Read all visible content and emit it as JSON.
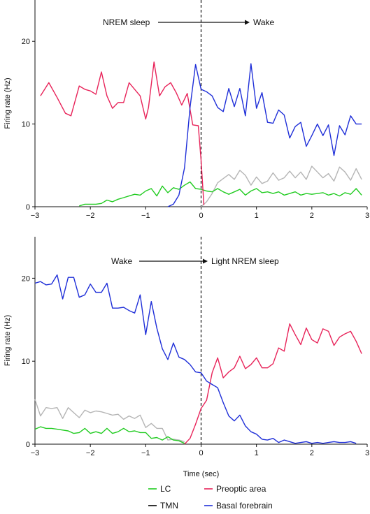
{
  "chart_data": [
    {
      "type": "line",
      "annotation_left": "NREM sleep",
      "annotation_right": "Wake",
      "xlabel": "",
      "ylabel": "Firing rate (Hz)",
      "xlim": [
        -3,
        3
      ],
      "ylim": [
        0,
        25
      ],
      "xticks": [
        "−3",
        "−2",
        "−1",
        "0",
        "1",
        "2",
        "3"
      ],
      "yticks": [
        "0",
        "10",
        "20"
      ],
      "vline_x": 0,
      "series": [
        {
          "name": "LC",
          "color": "#22cc22",
          "x": [
            -2.2,
            -2.1,
            -2.0,
            -1.9,
            -1.8,
            -1.7,
            -1.6,
            -1.5,
            -1.4,
            -1.3,
            -1.2,
            -1.1,
            -1.0,
            -0.9,
            -0.8,
            -0.7,
            -0.6,
            -0.5,
            -0.4,
            -0.3,
            -0.2,
            -0.1,
            0.0,
            0.1,
            0.2,
            0.3,
            0.4,
            0.5,
            0.6,
            0.7,
            0.8,
            0.9,
            1.0,
            1.1,
            1.2,
            1.3,
            1.4,
            1.5,
            1.6,
            1.7,
            1.8,
            1.9,
            2.0,
            2.1,
            2.2,
            2.3,
            2.4,
            2.5,
            2.6,
            2.7,
            2.8,
            2.9
          ],
          "values": [
            0.1,
            0.3,
            0.3,
            0.3,
            0.4,
            0.8,
            0.6,
            0.9,
            1.1,
            1.3,
            1.5,
            1.4,
            1.9,
            2.2,
            1.3,
            2.5,
            1.7,
            2.3,
            2.1,
            2.6,
            3.0,
            2.2,
            2.1,
            1.9,
            1.8,
            2.2,
            1.8,
            1.5,
            1.8,
            2.1,
            1.4,
            1.9,
            2.2,
            1.7,
            1.8,
            1.6,
            1.8,
            1.4,
            1.6,
            1.8,
            1.4,
            1.6,
            1.5,
            1.6,
            1.7,
            1.4,
            1.6,
            1.3,
            1.7,
            1.5,
            2.2,
            1.4
          ]
        },
        {
          "name": "TMN",
          "color": "#000000",
          "x": [],
          "values": []
        },
        {
          "name": "Preoptic area",
          "color": "#e8245a",
          "x": [
            -2.9,
            -2.75,
            -2.6,
            -2.45,
            -2.35,
            -2.2,
            -2.1,
            -2.0,
            -1.9,
            -1.8,
            -1.7,
            -1.6,
            -1.5,
            -1.4,
            -1.3,
            -1.2,
            -1.1,
            -1.0,
            -0.95,
            -0.85,
            -0.75,
            -0.65,
            -0.55,
            -0.45,
            -0.35,
            -0.25,
            -0.15,
            -0.05,
            0.0,
            0.05
          ],
          "values": [
            13.4,
            15.0,
            13.2,
            11.3,
            11.0,
            14.6,
            14.2,
            14.0,
            13.6,
            16.3,
            13.4,
            11.9,
            12.6,
            12.6,
            15.0,
            14.2,
            13.4,
            10.6,
            12.0,
            17.5,
            13.4,
            14.5,
            15.0,
            13.8,
            12.3,
            13.7,
            9.9,
            9.8,
            5.6,
            0.2
          ]
        },
        {
          "name": "Basal forebrain",
          "color": "#1f2fd8",
          "x": [
            -0.6,
            -0.5,
            -0.4,
            -0.3,
            -0.2,
            -0.1,
            0.0,
            0.1,
            0.2,
            0.3,
            0.4,
            0.5,
            0.6,
            0.7,
            0.8,
            0.9,
            1.0,
            1.1,
            1.2,
            1.3,
            1.4,
            1.5,
            1.6,
            1.7,
            1.8,
            1.9,
            2.0,
            2.1,
            2.2,
            2.3,
            2.4,
            2.5,
            2.6,
            2.7,
            2.8,
            2.9
          ],
          "values": [
            0.0,
            0.3,
            1.4,
            4.7,
            12.0,
            17.2,
            14.2,
            13.9,
            13.4,
            12.0,
            11.5,
            14.3,
            12.1,
            14.3,
            11.0,
            17.3,
            11.9,
            13.8,
            10.2,
            10.1,
            11.7,
            11.1,
            8.3,
            9.7,
            10.2,
            7.3,
            8.6,
            10.0,
            8.6,
            9.9,
            6.2,
            9.8,
            8.7,
            11.0,
            10.0,
            10.0
          ]
        },
        {
          "name": "",
          "color": "#b5b5b5",
          "x": [
            0.0,
            0.1,
            0.2,
            0.3,
            0.4,
            0.5,
            0.6,
            0.7,
            0.8,
            0.9,
            1.0,
            1.1,
            1.2,
            1.3,
            1.4,
            1.5,
            1.6,
            1.7,
            1.8,
            1.9,
            2.0,
            2.1,
            2.2,
            2.3,
            2.4,
            2.5,
            2.6,
            2.7,
            2.8,
            2.9
          ],
          "values": [
            0.0,
            0.6,
            1.6,
            2.9,
            3.4,
            3.9,
            3.3,
            4.4,
            3.8,
            2.6,
            3.6,
            2.8,
            3.1,
            4.1,
            3.2,
            3.5,
            4.3,
            3.5,
            4.2,
            3.3,
            4.9,
            4.2,
            3.5,
            4.0,
            3.1,
            4.8,
            4.2,
            3.2,
            4.6,
            3.3
          ]
        }
      ]
    },
    {
      "type": "line",
      "annotation_left": "Wake",
      "annotation_right": "Light NREM sleep",
      "xlabel": "Time (sec)",
      "ylabel": "Firing rate (Hz)",
      "xlim": [
        -3,
        3
      ],
      "ylim": [
        0,
        25
      ],
      "xticks": [
        "−3",
        "−2",
        "−1",
        "0",
        "1",
        "2",
        "3"
      ],
      "yticks": [
        "0",
        "10",
        "20"
      ],
      "vline_x": 0,
      "series": [
        {
          "name": "LC",
          "color": "#22cc22",
          "x": [
            -3.0,
            -2.9,
            -2.8,
            -2.7,
            -2.6,
            -2.5,
            -2.4,
            -2.3,
            -2.2,
            -2.1,
            -2.0,
            -1.9,
            -1.8,
            -1.7,
            -1.6,
            -1.5,
            -1.4,
            -1.3,
            -1.2,
            -1.1,
            -1.0,
            -0.9,
            -0.8,
            -0.7,
            -0.6,
            -0.5,
            -0.4,
            -0.3
          ],
          "values": [
            1.8,
            2.1,
            1.9,
            1.9,
            1.8,
            1.7,
            1.6,
            1.3,
            1.4,
            1.9,
            1.3,
            1.5,
            1.3,
            1.9,
            1.3,
            1.5,
            1.9,
            1.5,
            1.6,
            1.4,
            1.4,
            0.7,
            0.8,
            0.5,
            0.9,
            0.5,
            0.4,
            0.1
          ]
        },
        {
          "name": "TMN",
          "color": "#000000",
          "x": [],
          "values": []
        },
        {
          "name": "Preoptic area",
          "color": "#e8245a",
          "x": [
            -0.3,
            -0.2,
            -0.1,
            0.0,
            0.05,
            0.1,
            0.2,
            0.3,
            0.4,
            0.5,
            0.6,
            0.7,
            0.8,
            0.9,
            1.0,
            1.1,
            1.2,
            1.3,
            1.4,
            1.5,
            1.6,
            1.7,
            1.8,
            1.9,
            2.0,
            2.1,
            2.2,
            2.3,
            2.4,
            2.5,
            2.6,
            2.7,
            2.8,
            2.9
          ],
          "values": [
            0.0,
            0.7,
            2.4,
            4.3,
            4.8,
            5.3,
            8.6,
            10.4,
            8.0,
            8.7,
            9.2,
            10.6,
            9.1,
            9.6,
            10.4,
            9.2,
            9.2,
            9.7,
            11.6,
            11.2,
            14.5,
            13.2,
            12.0,
            14.0,
            12.6,
            12.2,
            13.9,
            13.6,
            11.9,
            12.9,
            13.3,
            13.6,
            12.4,
            10.9
          ]
        },
        {
          "name": "Basal forebrain",
          "color": "#1f2fd8",
          "x": [
            -3.0,
            -2.9,
            -2.8,
            -2.7,
            -2.6,
            -2.5,
            -2.4,
            -2.3,
            -2.2,
            -2.1,
            -2.0,
            -1.9,
            -1.8,
            -1.7,
            -1.6,
            -1.5,
            -1.4,
            -1.3,
            -1.2,
            -1.1,
            -1.0,
            -0.9,
            -0.8,
            -0.7,
            -0.6,
            -0.5,
            -0.4,
            -0.3,
            -0.2,
            -0.1,
            0.0,
            0.1,
            0.2,
            0.3,
            0.4,
            0.5,
            0.6,
            0.7,
            0.8,
            0.9,
            1.0,
            1.1,
            1.2,
            1.3,
            1.4,
            1.5,
            1.6,
            1.7,
            1.8,
            1.9,
            2.0,
            2.1,
            2.2,
            2.3,
            2.4,
            2.5,
            2.6,
            2.7,
            2.8
          ],
          "values": [
            19.4,
            19.6,
            19.2,
            19.3,
            20.4,
            17.5,
            20.1,
            20.1,
            17.7,
            18.0,
            19.3,
            18.3,
            18.3,
            19.4,
            16.4,
            16.4,
            16.5,
            16.1,
            15.8,
            18.0,
            13.2,
            17.2,
            14.0,
            11.5,
            10.2,
            12.2,
            10.5,
            10.2,
            9.6,
            8.7,
            8.6,
            7.6,
            7.2,
            6.8,
            5.0,
            3.4,
            2.8,
            3.5,
            2.2,
            1.5,
            1.2,
            0.6,
            0.5,
            0.7,
            0.2,
            0.5,
            0.3,
            0.1,
            0.2,
            0.3,
            0.1,
            0.2,
            0.1,
            0.2,
            0.3,
            0.2,
            0.2,
            0.3,
            0.1
          ]
        },
        {
          "name": "",
          "color": "#b5b5b5",
          "x": [
            -3.0,
            -2.9,
            -2.8,
            -2.7,
            -2.6,
            -2.5,
            -2.4,
            -2.3,
            -2.2,
            -2.1,
            -2.0,
            -1.9,
            -1.8,
            -1.7,
            -1.6,
            -1.5,
            -1.4,
            -1.3,
            -1.2,
            -1.1,
            -1.0,
            -0.9,
            -0.8,
            -0.7,
            -0.6,
            -0.5,
            -0.4,
            -0.3
          ],
          "values": [
            5.4,
            3.4,
            4.4,
            4.3,
            4.4,
            3.1,
            4.4,
            3.8,
            3.2,
            4.1,
            3.8,
            4.0,
            3.9,
            3.7,
            3.5,
            3.6,
            3.0,
            3.4,
            3.1,
            3.5,
            2.0,
            2.5,
            1.9,
            1.9,
            0.5,
            0.6,
            0.5,
            0.3
          ]
        }
      ]
    }
  ],
  "legend": {
    "items": [
      {
        "label": "LC",
        "color": "#22cc22"
      },
      {
        "label": "Preoptic area",
        "color": "#e8245a"
      },
      {
        "label": "TMN",
        "color": "#000000"
      },
      {
        "label": "Basal forebrain",
        "color": "#1f2fd8"
      }
    ]
  }
}
